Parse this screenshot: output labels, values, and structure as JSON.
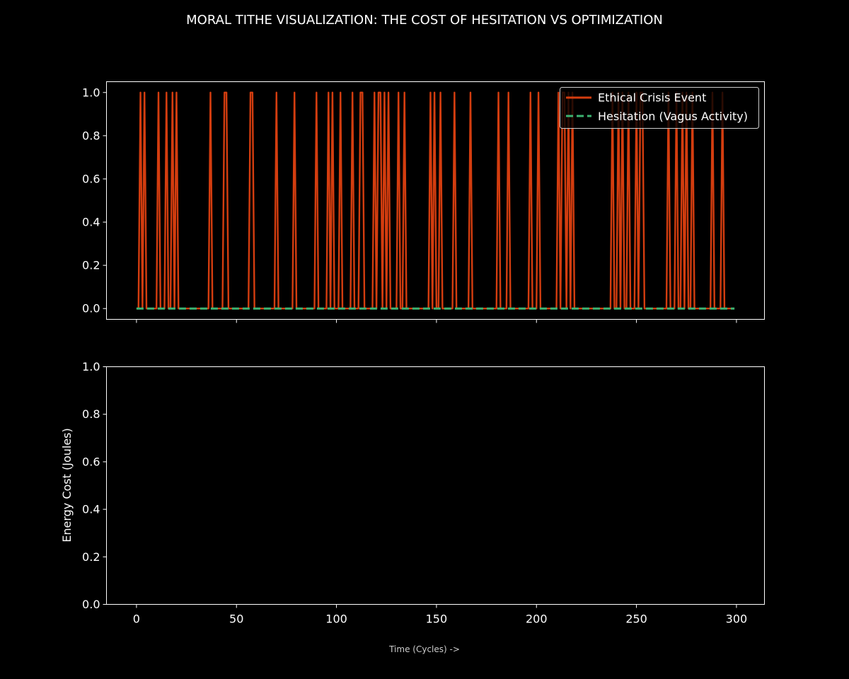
{
  "figure": {
    "suptitle": "MORAL TITHE VISUALIZATION: THE COST OF HESITATION VS OPTIMIZATION",
    "xlabel": "Time (Cycles) ->",
    "background": "#000000",
    "axis_color": "#ffffff",
    "text_color": "#ffffff",
    "xlabel_color": "#cccccc"
  },
  "chart_data": [
    {
      "type": "line",
      "title": "",
      "xlabel": "",
      "ylabel": "",
      "xlim": [
        -15,
        314
      ],
      "ylim": [
        -0.05,
        1.05
      ],
      "xticks": [
        0,
        50,
        100,
        150,
        200,
        250,
        300
      ],
      "yticks": [
        0.0,
        0.2,
        0.4,
        0.6,
        0.8,
        1.0
      ],
      "show_xticklabels": false,
      "grid": false,
      "legend": "top-right",
      "x_range": [
        0,
        299
      ],
      "series": [
        {
          "name": "Ethical Crisis Event",
          "color": "#d43d0f",
          "style": "solid",
          "kind": "spikes",
          "baseline": 0,
          "spike_value": 1,
          "spike_x": [
            2,
            4,
            11,
            15,
            18,
            20,
            37,
            44,
            45,
            57,
            58,
            70,
            79,
            90,
            96,
            98,
            102,
            108,
            112,
            113,
            119,
            121,
            122,
            124,
            126,
            131,
            134,
            147,
            149,
            152,
            159,
            167,
            181,
            186,
            197,
            201,
            211,
            213,
            214,
            216,
            218,
            238,
            241,
            243,
            246,
            250,
            252,
            253,
            266,
            270,
            273,
            275,
            278,
            288,
            293
          ]
        },
        {
          "name": "Hesitation (Vagus Activity)",
          "color": "#3cb371",
          "style": "dashed",
          "kind": "constant",
          "value": 0
        }
      ]
    },
    {
      "type": "line",
      "title": "",
      "xlabel": "",
      "ylabel": "Energy Cost (Joules)",
      "xlim": [
        -15,
        314
      ],
      "ylim": [
        0.0,
        1.0
      ],
      "xticks": [
        0,
        50,
        100,
        150,
        200,
        250,
        300
      ],
      "yticks": [
        0.0,
        0.2,
        0.4,
        0.6,
        0.8,
        1.0
      ],
      "show_xticklabels": true,
      "grid": false,
      "series": []
    }
  ]
}
